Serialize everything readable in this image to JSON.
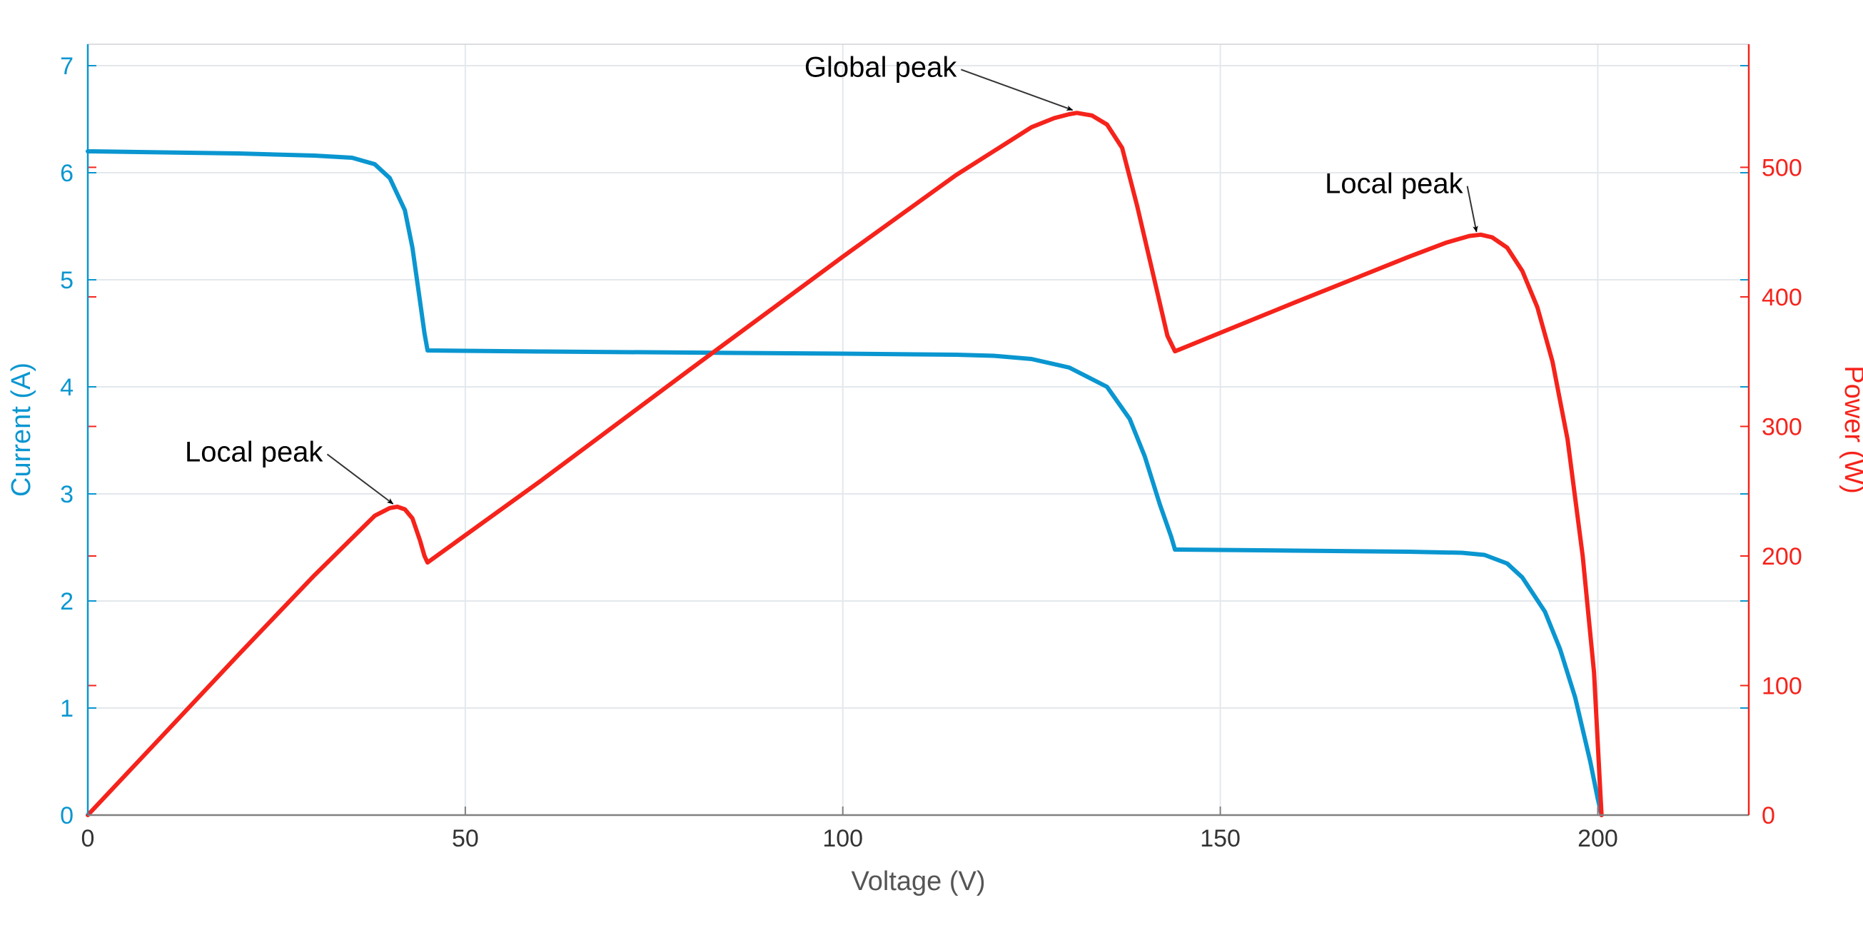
{
  "chart_data": {
    "type": "line",
    "title": "",
    "xlabel": "Voltage (V)",
    "ylabel_left": "Current (A)",
    "ylabel_right": "Power (W)",
    "xlim": [
      0,
      220
    ],
    "ylim_left": [
      0,
      7.2
    ],
    "ylim_right": [
      0,
      595
    ],
    "x_ticks": [
      "0",
      "50",
      "100",
      "150",
      "200"
    ],
    "y_left_ticks": [
      "0",
      "1",
      "2",
      "3",
      "4",
      "5",
      "6",
      "7"
    ],
    "y_right_ticks": [
      "0",
      "100",
      "200",
      "300",
      "400",
      "500"
    ],
    "grid": true,
    "colors": {
      "current": "#0a96d0",
      "power": "#f5231b",
      "grid": "#e3e8ec",
      "axis": "#808080"
    },
    "series": [
      {
        "axis": "left",
        "x": [
          0,
          10,
          20,
          30,
          35,
          38,
          40,
          42,
          43,
          44,
          44.6,
          45,
          60,
          80,
          100,
          115,
          120,
          125,
          130,
          135,
          138,
          140,
          142,
          143.5,
          144,
          160,
          175,
          182,
          185,
          188,
          190,
          193,
          195,
          197,
          199,
          200,
          200.5
        ],
        "values": [
          6.2,
          6.19,
          6.18,
          6.16,
          6.14,
          6.08,
          5.95,
          5.65,
          5.3,
          4.8,
          4.5,
          4.34,
          4.33,
          4.32,
          4.31,
          4.3,
          4.29,
          4.26,
          4.18,
          4.0,
          3.7,
          3.35,
          2.9,
          2.6,
          2.48,
          2.47,
          2.46,
          2.45,
          2.43,
          2.35,
          2.22,
          1.9,
          1.55,
          1.1,
          0.5,
          0.15,
          0
        ]
      },
      {
        "axis": "right",
        "x": [
          0,
          10,
          20,
          30,
          38,
          40,
          41,
          42,
          43,
          44,
          44.6,
          45,
          60,
          80,
          100,
          115,
          125,
          128,
          130,
          131,
          133,
          135,
          137,
          139,
          141,
          143,
          144,
          160,
          175,
          180,
          183,
          184.5,
          186,
          188,
          190,
          192,
          194,
          196,
          198,
          199.5,
          200.5
        ],
        "values": [
          0,
          62,
          124,
          185,
          231,
          237,
          238,
          236,
          229,
          212,
          200,
          195,
          258,
          345,
          431,
          494,
          531,
          538,
          541,
          542,
          540,
          533,
          515,
          470,
          420,
          370,
          358,
          396,
          431,
          442,
          447,
          448,
          446,
          438,
          420,
          392,
          350,
          290,
          200,
          110,
          0
        ]
      }
    ],
    "annotations": [
      {
        "text": "Global peak",
        "target_x": 131,
        "target_power": 542,
        "label_x": 105,
        "label_power": 570
      },
      {
        "text": "Local peak",
        "target_x": 184.5,
        "target_power": 448,
        "label_x": 173,
        "label_power": 480
      },
      {
        "text": "Local peak",
        "target_x": 41,
        "target_power": 238,
        "label_x": 22,
        "label_power": 273
      }
    ]
  }
}
